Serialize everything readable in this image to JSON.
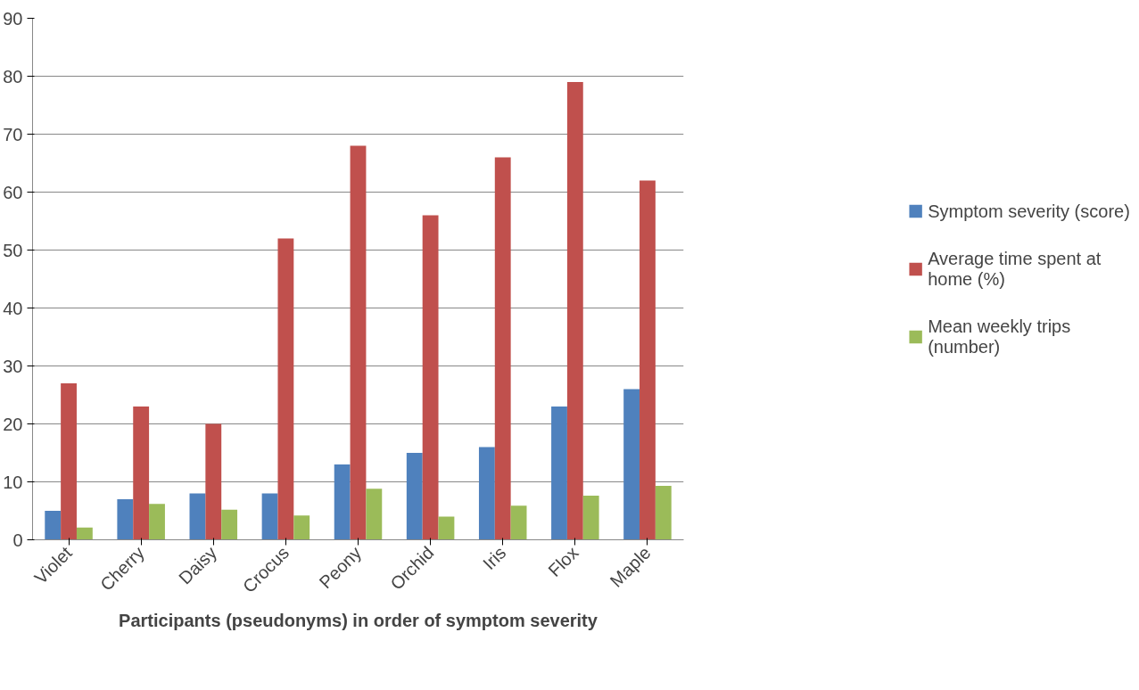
{
  "chart_data": {
    "type": "bar",
    "xlabel": "Participants (pseudonyms) in order of symptom severity",
    "categories": [
      "Violet",
      "Cherry",
      "Daisy",
      "Crocus",
      "Peony",
      "Orchid",
      "Iris",
      "Flox",
      "Maple"
    ],
    "series": [
      {
        "name": "Symptom severity (score)",
        "color": "#4f81bd",
        "values": [
          5,
          7,
          8,
          8,
          13,
          15,
          16,
          23,
          26
        ]
      },
      {
        "name": "Average time spent at home (%)",
        "color": "#c0504d",
        "values": [
          27,
          23,
          20,
          52,
          68,
          56,
          66,
          79,
          62
        ]
      },
      {
        "name": "Mean weekly trips (number)",
        "color": "#9bbb59",
        "values": [
          2.1,
          6.2,
          5.2,
          4.2,
          8.8,
          4.0,
          5.9,
          7.6,
          9.3
        ]
      }
    ],
    "ylim": [
      0,
      90
    ],
    "yticks": [
      0,
      10,
      20,
      30,
      40,
      50,
      60,
      70,
      80,
      90
    ],
    "grid": "y",
    "legend": "right"
  }
}
